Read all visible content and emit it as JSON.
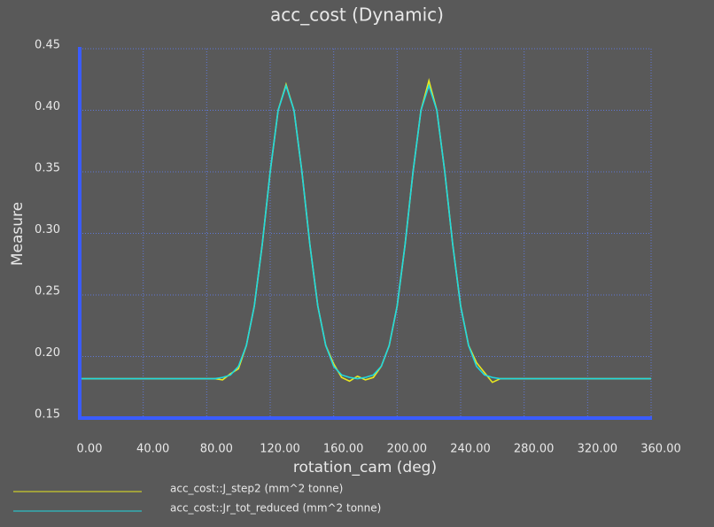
{
  "chart_data": {
    "type": "line",
    "title": "acc_cost (Dynamic)",
    "x_label": "rotation_cam (deg)",
    "y_label": "Measure",
    "x": [
      0,
      5,
      10,
      15,
      20,
      25,
      30,
      35,
      40,
      45,
      50,
      55,
      60,
      65,
      70,
      75,
      80,
      85,
      90,
      95,
      100,
      105,
      110,
      115,
      120,
      125,
      130,
      135,
      140,
      145,
      150,
      155,
      160,
      165,
      170,
      175,
      180,
      185,
      190,
      195,
      200,
      205,
      210,
      215,
      220,
      225,
      230,
      235,
      240,
      245,
      250,
      255,
      260,
      265,
      270,
      275,
      280,
      285,
      290,
      295,
      300,
      305,
      310,
      315,
      320,
      325,
      330,
      335,
      340,
      345,
      350,
      355,
      360
    ],
    "series": [
      {
        "name": "acc_cost::J_step2 (mm^2 tonne)",
        "color": "#e8e820",
        "values": [
          0.182,
          0.182,
          0.182,
          0.182,
          0.182,
          0.182,
          0.182,
          0.182,
          0.182,
          0.182,
          0.182,
          0.182,
          0.182,
          0.182,
          0.182,
          0.182,
          0.182,
          0.182,
          0.181,
          0.186,
          0.19,
          0.209,
          0.241,
          0.291,
          0.35,
          0.4,
          0.421,
          0.4,
          0.35,
          0.291,
          0.241,
          0.209,
          0.194,
          0.183,
          0.18,
          0.184,
          0.181,
          0.183,
          0.192,
          0.209,
          0.241,
          0.291,
          0.35,
          0.4,
          0.424,
          0.4,
          0.35,
          0.291,
          0.241,
          0.209,
          0.195,
          0.187,
          0.179,
          0.182,
          0.182,
          0.182,
          0.182,
          0.182,
          0.182,
          0.182,
          0.182,
          0.182,
          0.182,
          0.182,
          0.182,
          0.182,
          0.182,
          0.182,
          0.182,
          0.182,
          0.182,
          0.182,
          0.182
        ]
      },
      {
        "name": "acc_cost::Jr_tot_reduced (mm^2 tonne)",
        "color": "#20d8e0",
        "values": [
          0.182,
          0.182,
          0.182,
          0.182,
          0.182,
          0.182,
          0.182,
          0.182,
          0.182,
          0.182,
          0.182,
          0.182,
          0.182,
          0.182,
          0.182,
          0.182,
          0.182,
          0.182,
          0.183,
          0.185,
          0.192,
          0.209,
          0.241,
          0.291,
          0.35,
          0.4,
          0.42,
          0.4,
          0.35,
          0.291,
          0.241,
          0.209,
          0.192,
          0.185,
          0.183,
          0.182,
          0.183,
          0.185,
          0.192,
          0.209,
          0.241,
          0.291,
          0.35,
          0.4,
          0.42,
          0.4,
          0.35,
          0.291,
          0.241,
          0.209,
          0.192,
          0.185,
          0.183,
          0.182,
          0.182,
          0.182,
          0.182,
          0.182,
          0.182,
          0.182,
          0.182,
          0.182,
          0.182,
          0.182,
          0.182,
          0.182,
          0.182,
          0.182,
          0.182,
          0.182,
          0.182,
          0.182,
          0.182
        ]
      }
    ],
    "xlim": [
      0,
      360
    ],
    "xticks": [
      {
        "value": 0,
        "label": "0.00"
      },
      {
        "value": 40,
        "label": "40.00"
      },
      {
        "value": 80,
        "label": "80.00"
      },
      {
        "value": 120,
        "label": "120.00"
      },
      {
        "value": 160,
        "label": "160.00"
      },
      {
        "value": 200,
        "label": "200.00"
      },
      {
        "value": 240,
        "label": "240.00"
      },
      {
        "value": 280,
        "label": "280.00"
      },
      {
        "value": 320,
        "label": "320.00"
      },
      {
        "value": 360,
        "label": "360.00"
      }
    ],
    "ylim": [
      0.15,
      0.45
    ],
    "yticks": [
      0.15,
      {
        "value": 0.2,
        "label": "0.20"
      },
      0.25,
      {
        "value": 0.3,
        "label": "0.30"
      },
      0.35,
      {
        "value": 0.4,
        "label": "0.40"
      },
      0.45
    ],
    "grid": true
  }
}
